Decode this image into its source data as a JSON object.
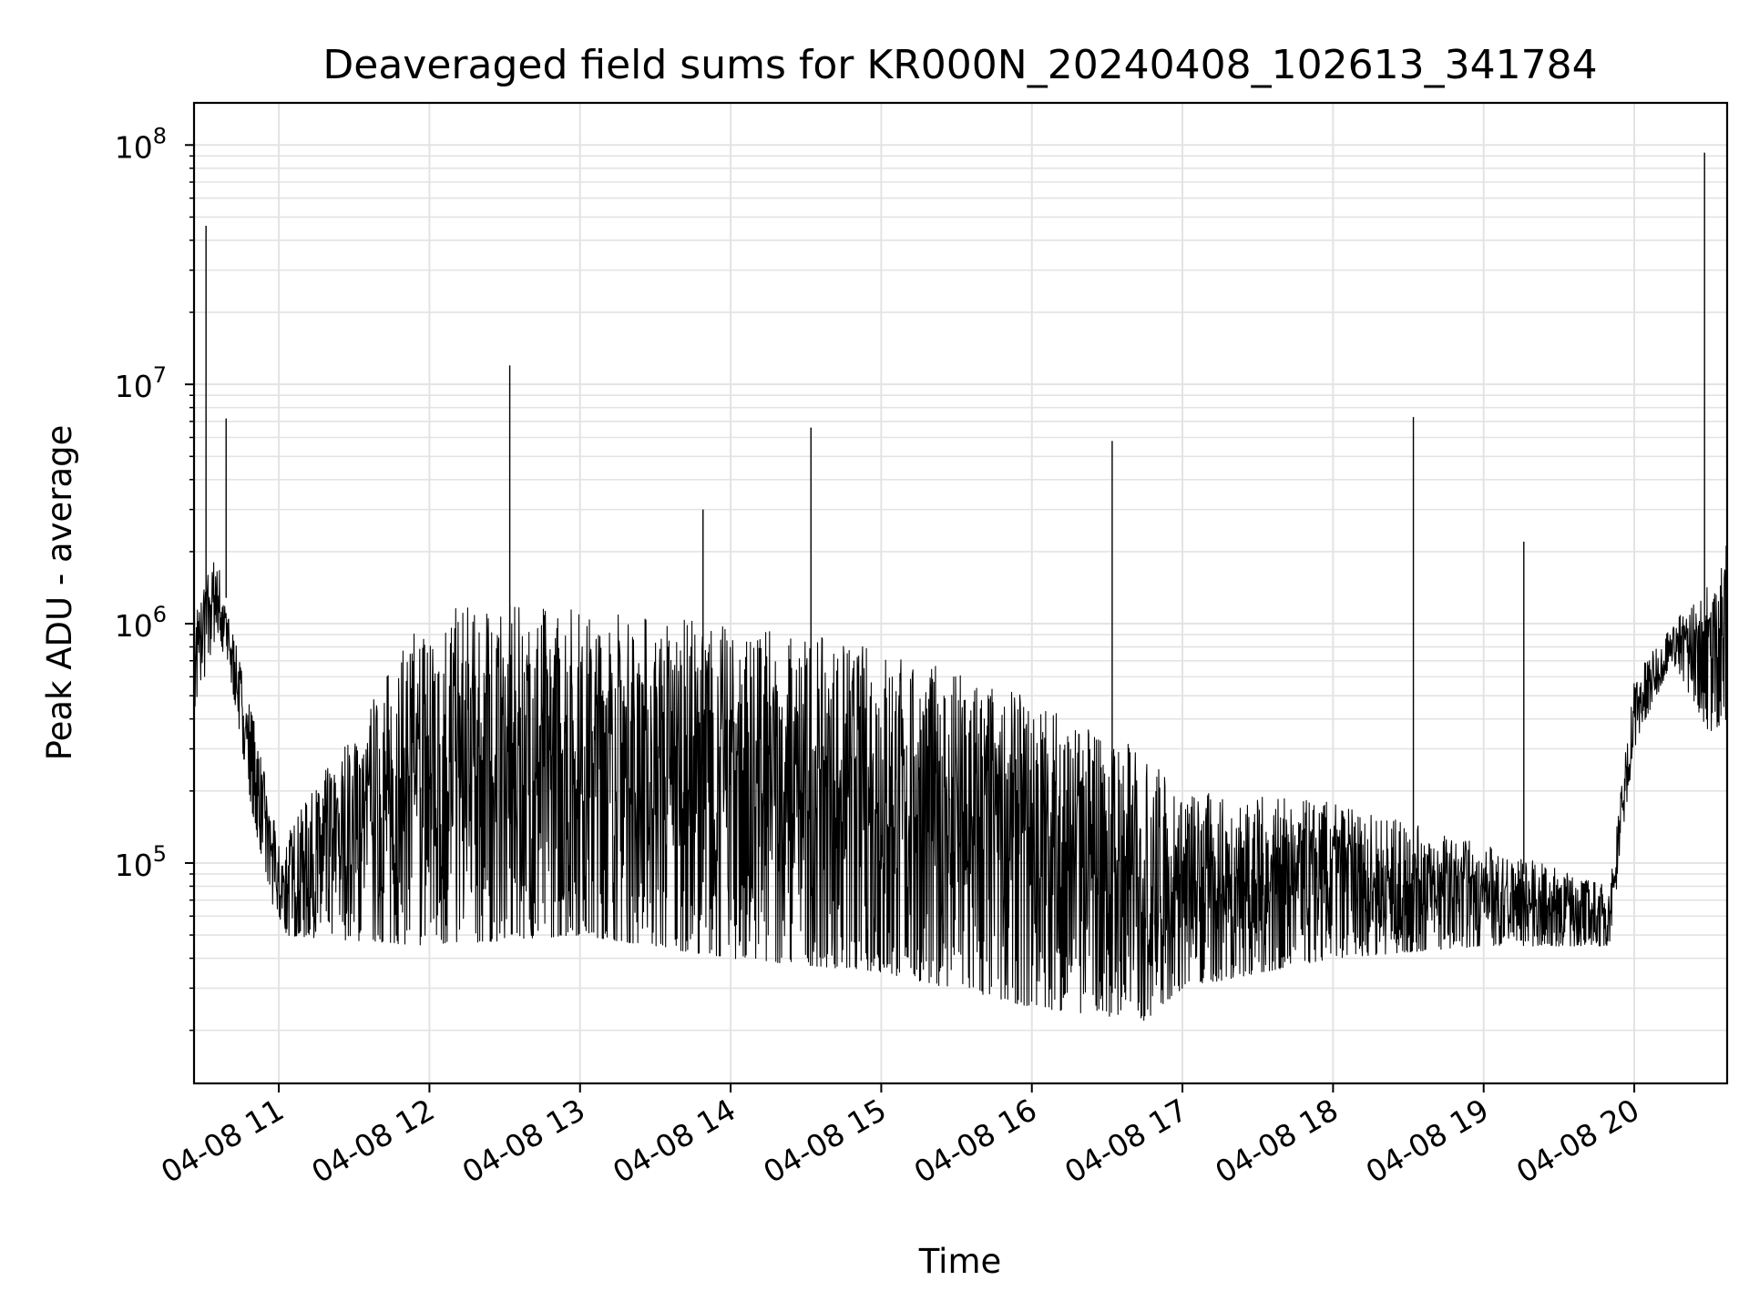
{
  "chart_data": {
    "type": "line",
    "title": "Deaveraged field sums for KR000N_20240408_102613_341784",
    "xlabel": "Time",
    "ylabel": "Peak ADU - average",
    "y_scale": "log",
    "ylim": [
      12000,
      150000000
    ],
    "xlim": [
      "2024-04-08 10:26:13",
      "2024-04-08 20:37:00"
    ],
    "grid": true,
    "line_color": "#000000",
    "x_tick_labels": [
      {
        "t": "2024-04-08 11:00",
        "label": "04-08 11"
      },
      {
        "t": "2024-04-08 12:00",
        "label": "04-08 12"
      },
      {
        "t": "2024-04-08 13:00",
        "label": "04-08 13"
      },
      {
        "t": "2024-04-08 14:00",
        "label": "04-08 14"
      },
      {
        "t": "2024-04-08 15:00",
        "label": "04-08 15"
      },
      {
        "t": "2024-04-08 16:00",
        "label": "04-08 16"
      },
      {
        "t": "2024-04-08 17:00",
        "label": "04-08 17"
      },
      {
        "t": "2024-04-08 18:00",
        "label": "04-08 18"
      },
      {
        "t": "2024-04-08 19:00",
        "label": "04-08 19"
      },
      {
        "t": "2024-04-08 20:00",
        "label": "04-08 20"
      }
    ],
    "y_tick_labels": [
      {
        "value": 100000,
        "base": "10",
        "exp": "5"
      },
      {
        "value": 1000000,
        "base": "10",
        "exp": "6"
      },
      {
        "value": 10000000,
        "base": "10",
        "exp": "7"
      },
      {
        "value": 100000000,
        "base": "10",
        "exp": "8"
      }
    ],
    "envelope": [
      {
        "t": "2024-04-08 10:26",
        "low": 400000,
        "high": 1200000
      },
      {
        "t": "2024-04-08 10:35",
        "low": 900000,
        "high": 2000000
      },
      {
        "t": "2024-04-08 10:42",
        "low": 500000,
        "high": 900000
      },
      {
        "t": "2024-04-08 10:50",
        "low": 150000,
        "high": 400000
      },
      {
        "t": "2024-04-08 11:00",
        "low": 50000,
        "high": 120000
      },
      {
        "t": "2024-04-08 12:00",
        "low": 45000,
        "high": 1200000
      },
      {
        "t": "2024-04-08 13:00",
        "low": 50000,
        "high": 1200000
      },
      {
        "t": "2024-04-08 14:00",
        "low": 40000,
        "high": 1000000
      },
      {
        "t": "2024-04-08 15:00",
        "low": 35000,
        "high": 800000
      },
      {
        "t": "2024-04-08 16:00",
        "low": 25000,
        "high": 500000
      },
      {
        "t": "2024-04-08 16:45",
        "low": 22000,
        "high": 300000
      },
      {
        "t": "2024-04-08 17:00",
        "low": 30000,
        "high": 200000
      },
      {
        "t": "2024-04-08 18:00",
        "low": 40000,
        "high": 180000
      },
      {
        "t": "2024-04-08 19:00",
        "low": 45000,
        "high": 120000
      },
      {
        "t": "2024-04-08 19:50",
        "low": 45000,
        "high": 80000
      },
      {
        "t": "2024-04-08 20:00",
        "low": 300000,
        "high": 600000
      },
      {
        "t": "2024-04-08 20:15",
        "low": 700000,
        "high": 1000000
      },
      {
        "t": "2024-04-08 20:30",
        "low": 350000,
        "high": 1500000
      },
      {
        "t": "2024-04-08 20:37",
        "low": 400000,
        "high": 2200000
      }
    ],
    "spikes": [
      {
        "t": "2024-04-08 10:31",
        "y": 46000000
      },
      {
        "t": "2024-04-08 10:39",
        "y": 7200000
      },
      {
        "t": "2024-04-08 12:32",
        "y": 12000000
      },
      {
        "t": "2024-04-08 13:49",
        "y": 3000000
      },
      {
        "t": "2024-04-08 14:32",
        "y": 6600000
      },
      {
        "t": "2024-04-08 16:32",
        "y": 5800000
      },
      {
        "t": "2024-04-08 18:32",
        "y": 7300000
      },
      {
        "t": "2024-04-08 19:16",
        "y": 2200000
      },
      {
        "t": "2024-04-08 20:28",
        "y": 93000000
      }
    ]
  }
}
